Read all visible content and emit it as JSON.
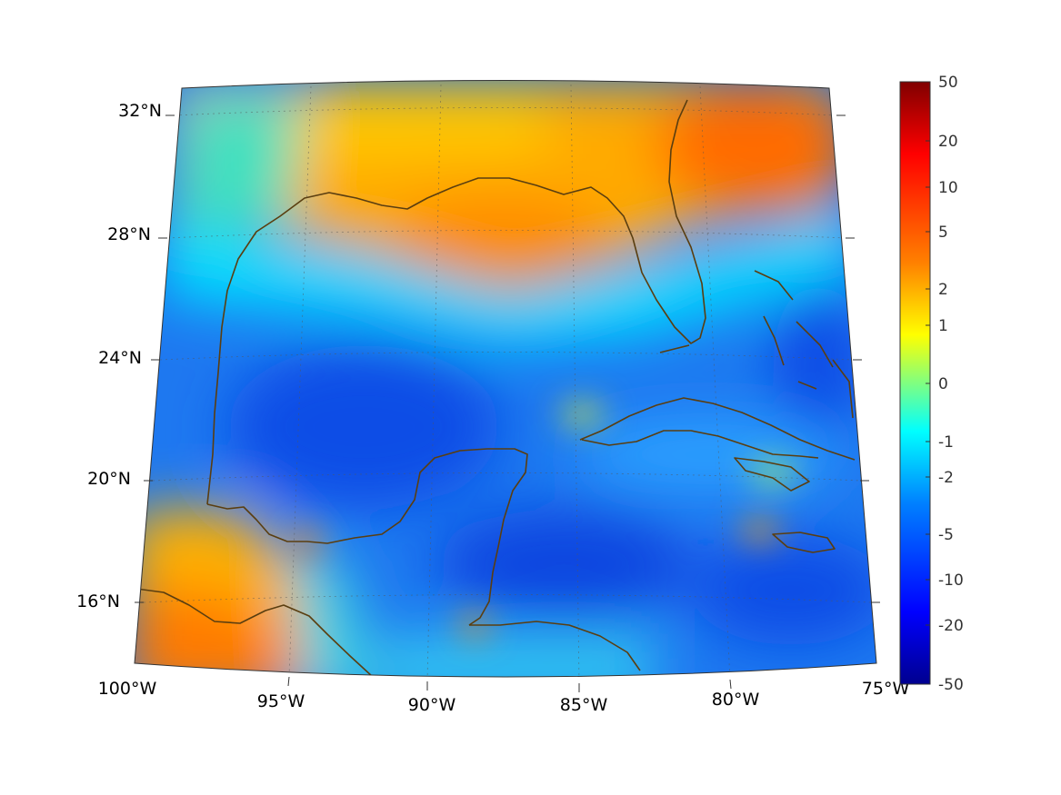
{
  "map": {
    "region": "Gulf of Mexico and Caribbean",
    "projection": "conic",
    "lat_labels": [
      "32°N",
      "28°N",
      "24°N",
      "20°N",
      "16°N"
    ],
    "lon_labels": [
      "100°W",
      "95°W",
      "90°W",
      "85°W",
      "80°W",
      "75°W"
    ],
    "coastline_color": "#5a3e10",
    "grid": "dotted"
  },
  "colorbar": {
    "colormap": "jet",
    "tick_labels": [
      "50",
      "20",
      "10",
      "5",
      "2",
      "1",
      "0",
      "-1",
      "-2",
      "-5",
      "-10",
      "-20",
      "-50"
    ],
    "colors": [
      "#00008f",
      "#0000ff",
      "#0080ff",
      "#00ffff",
      "#80ff80",
      "#ffff00",
      "#ff8000",
      "#ff0000",
      "#800000"
    ]
  }
}
